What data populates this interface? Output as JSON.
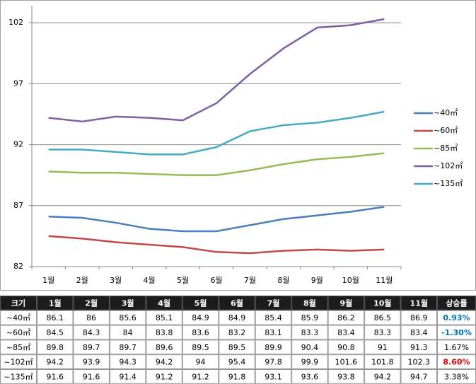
{
  "chart_data": {
    "type": "line",
    "categories": [
      "1월",
      "2월",
      "3월",
      "4월",
      "5월",
      "6월",
      "7월",
      "8월",
      "9월",
      "10월",
      "11월"
    ],
    "series": [
      {
        "name": "~40㎡",
        "color": "#4a7ebb",
        "values": [
          86.1,
          86,
          85.6,
          85.1,
          84.9,
          84.9,
          85.4,
          85.9,
          86.2,
          86.5,
          86.9
        ]
      },
      {
        "name": "~60㎡",
        "color": "#be4b48",
        "values": [
          84.5,
          84.3,
          84,
          83.8,
          83.6,
          83.2,
          83.1,
          83.3,
          83.4,
          83.3,
          83.4
        ]
      },
      {
        "name": "~85㎡",
        "color": "#98b954",
        "values": [
          89.8,
          89.7,
          89.7,
          89.6,
          89.5,
          89.5,
          89.9,
          90.4,
          90.8,
          91,
          91.3
        ]
      },
      {
        "name": "~102㎡",
        "color": "#7d60a0",
        "values": [
          94.2,
          93.9,
          94.3,
          94.2,
          94,
          95.4,
          97.8,
          99.9,
          101.6,
          101.8,
          102.3
        ]
      },
      {
        "name": "~135㎡",
        "color": "#46aac5",
        "values": [
          91.6,
          91.6,
          91.4,
          91.2,
          91.2,
          91.8,
          93.1,
          93.6,
          93.8,
          94.2,
          94.7
        ]
      }
    ],
    "ylim": [
      82,
      103.4
    ],
    "yticks": [
      82,
      87,
      92,
      97,
      102
    ],
    "grid": true,
    "legend": "right"
  },
  "table": {
    "header": {
      "size": "크기",
      "rate": "상승률"
    },
    "rates": [
      {
        "text": "0.93%",
        "color": "#0070c0",
        "bold": true
      },
      {
        "text": "-1.30%",
        "color": "#0070c0",
        "bold": true
      },
      {
        "text": "1.67%",
        "color": "#000000",
        "bold": false
      },
      {
        "text": "8.60%",
        "color": "#e00000",
        "bold": true
      },
      {
        "text": "3.38%",
        "color": "#000000",
        "bold": false
      }
    ]
  }
}
